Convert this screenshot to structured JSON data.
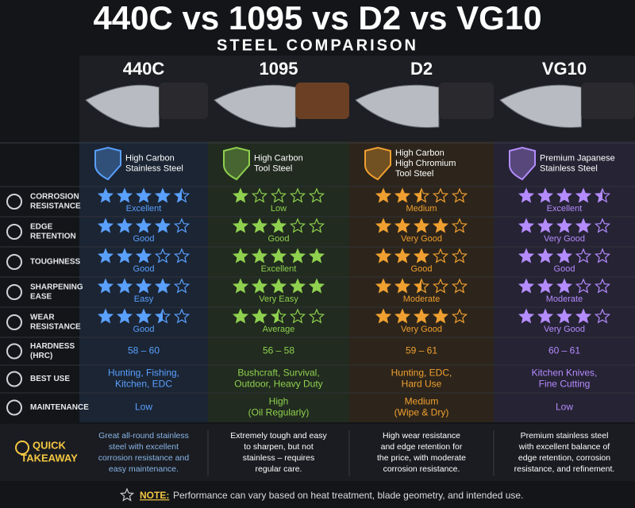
{
  "title": "440C vs 1095 vs D2 vs VG10",
  "subtitle": "STEEL COMPARISON",
  "columns": [
    {
      "name": "440C",
      "type": [
        "High Carbon",
        "Stainless Steel"
      ],
      "color": "#5aa0ff"
    },
    {
      "name": "1095",
      "type": [
        "High Carbon",
        "Tool Steel"
      ],
      "color": "#8fd14f"
    },
    {
      "name": "D2",
      "type": [
        "High Carbon",
        "High Chromium",
        "Tool Steel"
      ],
      "color": "#f0a030"
    },
    {
      "name": "VG10",
      "type": [
        "Premium Japanese",
        "Stainless Steel"
      ],
      "color": "#b48cff"
    }
  ],
  "rating_rows": [
    {
      "label": [
        "CORROSION",
        "RESISTANCE"
      ],
      "cells": [
        {
          "rating": 4.5,
          "text": "Excellent"
        },
        {
          "rating": 1,
          "text": "Low"
        },
        {
          "rating": 2.5,
          "text": "Medium"
        },
        {
          "rating": 4.5,
          "text": "Excellent"
        }
      ]
    },
    {
      "label": [
        "EDGE",
        "RETENTION"
      ],
      "cells": [
        {
          "rating": 4,
          "text": "Good"
        },
        {
          "rating": 3,
          "text": "Good"
        },
        {
          "rating": 4,
          "text": "Very Good"
        },
        {
          "rating": 4,
          "text": "Very Good"
        }
      ]
    },
    {
      "label": [
        "TOUGHNESS"
      ],
      "cells": [
        {
          "rating": 3,
          "text": "Good"
        },
        {
          "rating": 5,
          "text": "Excellent"
        },
        {
          "rating": 3,
          "text": "Good"
        },
        {
          "rating": 3,
          "text": "Good"
        }
      ]
    },
    {
      "label": [
        "SHARPENING",
        "EASE"
      ],
      "cells": [
        {
          "rating": 4,
          "text": "Easy"
        },
        {
          "rating": 5,
          "text": "Very Easy"
        },
        {
          "rating": 2.5,
          "text": "Moderate"
        },
        {
          "rating": 3,
          "text": "Moderate"
        }
      ]
    },
    {
      "label": [
        "WEAR",
        "RESISTANCE"
      ],
      "cells": [
        {
          "rating": 3.5,
          "text": "Good"
        },
        {
          "rating": 2.5,
          "text": "Average"
        },
        {
          "rating": 4,
          "text": "Very Good"
        },
        {
          "rating": 4,
          "text": "Very Good"
        }
      ]
    }
  ],
  "text_rows": [
    {
      "label": [
        "HARDNESS",
        "(HRC)"
      ],
      "cells": [
        [
          "58 – 60"
        ],
        [
          "56 – 58"
        ],
        [
          "59 – 61"
        ],
        [
          "60 – 61"
        ]
      ]
    },
    {
      "label": [
        "BEST USE"
      ],
      "cells": [
        [
          "Hunting, Fishing,",
          "Kitchen, EDC"
        ],
        [
          "Bushcraft, Survival,",
          "Outdoor, Heavy Duty"
        ],
        [
          "Hunting, EDC,",
          "Hard Use"
        ],
        [
          "Kitchen Knives,",
          "Fine Cutting"
        ]
      ]
    },
    {
      "label": [
        "MAINTENANCE"
      ],
      "cells": [
        [
          "Low"
        ],
        [
          "High",
          "(Oil Regularly)"
        ],
        [
          "Medium",
          "(Wipe & Dry)"
        ],
        [
          "Low"
        ]
      ]
    }
  ],
  "takeaway": {
    "label": [
      "QUICK",
      "TAKEAWAY"
    ],
    "cells": [
      [
        "Great all-round stainless",
        "steel with excellent",
        "corrosion resistance and",
        "easy maintenance."
      ],
      [
        "Extremely tough and easy",
        "to sharpen, but not",
        "stainless – requires",
        "regular care."
      ],
      [
        "High wear resistance",
        "and edge retention for",
        "the price, with moderate",
        "corrosion resistance."
      ],
      [
        "Premium stainless steel",
        "with excellent balance of",
        "edge retention, corrosion",
        "resistance, and refinement."
      ]
    ]
  },
  "note": {
    "label": "NOTE:",
    "text": "Performance can vary based on heat treatment, blade geometry, and intended use."
  }
}
